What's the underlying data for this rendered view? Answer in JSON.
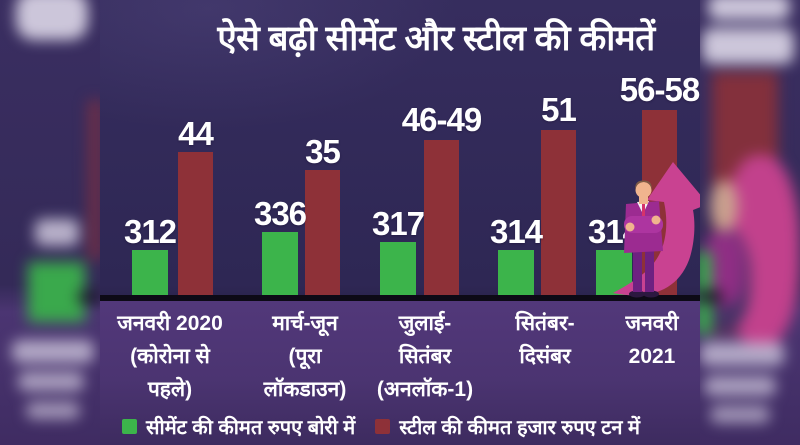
{
  "title": "ऐसे बढ़ी सीमेंट और स्टील की कीमतें",
  "chart_data": {
    "type": "bar",
    "title": "ऐसे बढ़ी सीमेंट और स्टील की कीमतें",
    "categories_lines": [
      [
        "जनवरी 2020",
        "(कोरोना से",
        "पहले)"
      ],
      [
        "मार्च-जून",
        "(पूरा",
        "लॉकडाउन)"
      ],
      [
        "जुलाई-",
        "सितंबर",
        "(अनलॉक-1)"
      ],
      [
        "सितंबर-",
        "दिसंबर"
      ],
      [
        "जनवरी",
        "2021"
      ]
    ],
    "series": [
      {
        "name": "सीमेंट की कीमत रुपए बोरी में",
        "unit": "रुपए प्रति बोरी",
        "color": "#3cb44b",
        "values": [
          "312",
          "336",
          "317",
          "314",
          "314"
        ],
        "values_numeric": [
          312,
          336,
          317,
          314,
          314
        ]
      },
      {
        "name": "स्टील की कीमत हजार रुपए टन में",
        "unit": "हजार रुपए प्रति टन",
        "color": "#8e3138",
        "values": [
          "44",
          "35",
          "46-49",
          "51",
          "56-58"
        ],
        "values_numeric": [
          44,
          35,
          47.5,
          51,
          57
        ]
      }
    ],
    "legend_position": "bottom",
    "grid": false,
    "axis_line_color": "#0d0a16"
  },
  "colors": {
    "cement_green": "#3cb44b",
    "steel_maroon": "#8e3138",
    "arrow_pink": "#c94291",
    "panel_dark": "#2e2754",
    "label_area_purple": "#4b3471",
    "text_white": "#ffffff"
  },
  "decor": {
    "businessman": "businessman-with-crossed-arms",
    "growth_arrow": "upward-curved-arrow"
  }
}
